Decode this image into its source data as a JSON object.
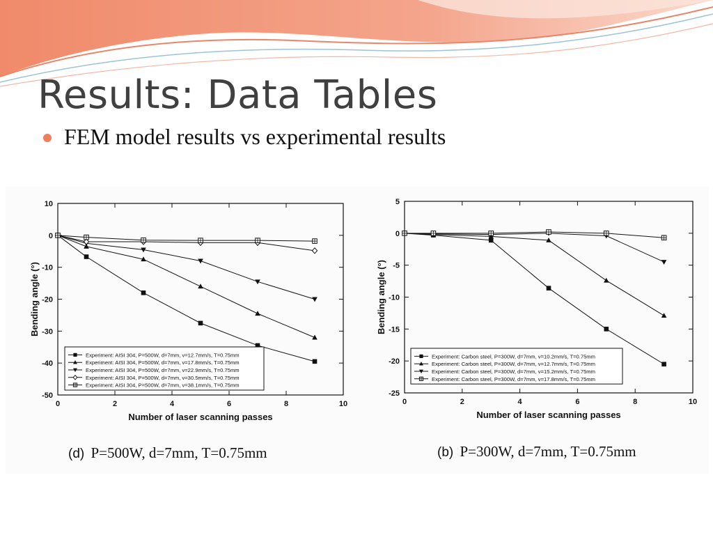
{
  "slide": {
    "title": "Results: Data Tables",
    "bullet": "FEM model results vs experimental results",
    "accent_color": "#f07f5f",
    "bullet_icon": "bullet-dot-icon"
  },
  "chart_data": [
    {
      "type": "line",
      "caption_tag": "(d)",
      "caption_text": "P=500W, d=7mm, T=0.75mm",
      "xlabel": "Number of laser scanning passes",
      "ylabel": "Bending angle (°)",
      "xlim": [
        0,
        10
      ],
      "ylim": [
        -50,
        10
      ],
      "x_ticks": [
        0,
        2,
        4,
        6,
        8,
        10
      ],
      "y_ticks": [
        10,
        0,
        -10,
        -20,
        -30,
        -40,
        -50
      ],
      "grid": false,
      "legend_position": "bottom-left",
      "series": [
        {
          "name": "Experiment: AISI 304, P=500W, d=7mm, v=12.7mm/s, T=0.75mm",
          "marker": "square-filled",
          "x": [
            0,
            1,
            3,
            5,
            7,
            9
          ],
          "y": [
            0,
            -6.7,
            -18,
            -27.5,
            -34.5,
            -39.5
          ]
        },
        {
          "name": "Experiment: AISI 304, P=500W, d=7mm, v=17.8mm/s, T=0.75mm",
          "marker": "triangle-up-filled",
          "x": [
            0,
            1,
            3,
            5,
            7,
            9
          ],
          "y": [
            0,
            -3.5,
            -7.5,
            -16,
            -24.5,
            -32
          ]
        },
        {
          "name": "Experiment: AISI 304, P=500W, d=7mm, v=22.9mm/s, T=0.75mm",
          "marker": "triangle-down-filled",
          "x": [
            0,
            1,
            3,
            5,
            7,
            9
          ],
          "y": [
            0,
            -2.5,
            -4.5,
            -8,
            -14.5,
            -20
          ]
        },
        {
          "name": "Experiment: AISI 304, P=500W, d=7mm, v=30.5mm/s, T=0.75mm",
          "marker": "diamond-open",
          "x": [
            0,
            1,
            3,
            5,
            7,
            9
          ],
          "y": [
            0,
            -2,
            -2,
            -2.3,
            -2.3,
            -4.8
          ]
        },
        {
          "name": "Experiment: AISI 304, P=500W, d=7mm, v=38.1mm/s, T=0.75mm",
          "marker": "square-plus-open",
          "x": [
            0,
            1,
            3,
            5,
            7,
            9
          ],
          "y": [
            0,
            -0.6,
            -1.5,
            -1.6,
            -1.6,
            -1.8
          ]
        }
      ]
    },
    {
      "type": "line",
      "caption_tag": "(b)",
      "caption_text": "P=300W, d=7mm, T=0.75mm",
      "xlabel": "Number of laser scanning passes",
      "ylabel": "Bending angle (°)",
      "xlim": [
        0,
        10
      ],
      "ylim": [
        -25,
        5
      ],
      "x_ticks": [
        0,
        2,
        4,
        6,
        8,
        10
      ],
      "y_ticks": [
        5,
        0,
        -5,
        -10,
        -15,
        -20,
        -25
      ],
      "grid": false,
      "legend_position": "bottom-left",
      "series": [
        {
          "name": "Experiment: Carbon steel, P=300W, d=7mm, v=10.2mm/s, T=0.75mm",
          "marker": "square-filled",
          "x": [
            0,
            1,
            3,
            5,
            7,
            9
          ],
          "y": [
            0,
            -0.3,
            -1.1,
            -8.6,
            -15,
            -20.5
          ]
        },
        {
          "name": "Experiment: Carbon steel, P=300W, d=7mm, v=12.7mm/s, T=0.75mm",
          "marker": "triangle-up-filled",
          "x": [
            0,
            1,
            3,
            5,
            7,
            9
          ],
          "y": [
            0,
            -0.2,
            -0.5,
            -1.1,
            -7.4,
            -12.9
          ]
        },
        {
          "name": "Experiment: Carbon steel, P=300W, d=7mm, v=15.2mm/s, T=0.75mm",
          "marker": "triangle-down-filled",
          "x": [
            0,
            1,
            3,
            5,
            7,
            9
          ],
          "y": [
            0,
            -0.1,
            -0.2,
            0,
            -0.4,
            -4.5
          ]
        },
        {
          "name": "Experiment: Carbon steel, P=300W, d=7mm, v=17.8mm/s, T=0.75mm",
          "marker": "square-plus-open",
          "x": [
            0,
            1,
            3,
            5,
            7,
            9
          ],
          "y": [
            0,
            0,
            0,
            0.2,
            0,
            -0.7
          ]
        }
      ]
    }
  ]
}
